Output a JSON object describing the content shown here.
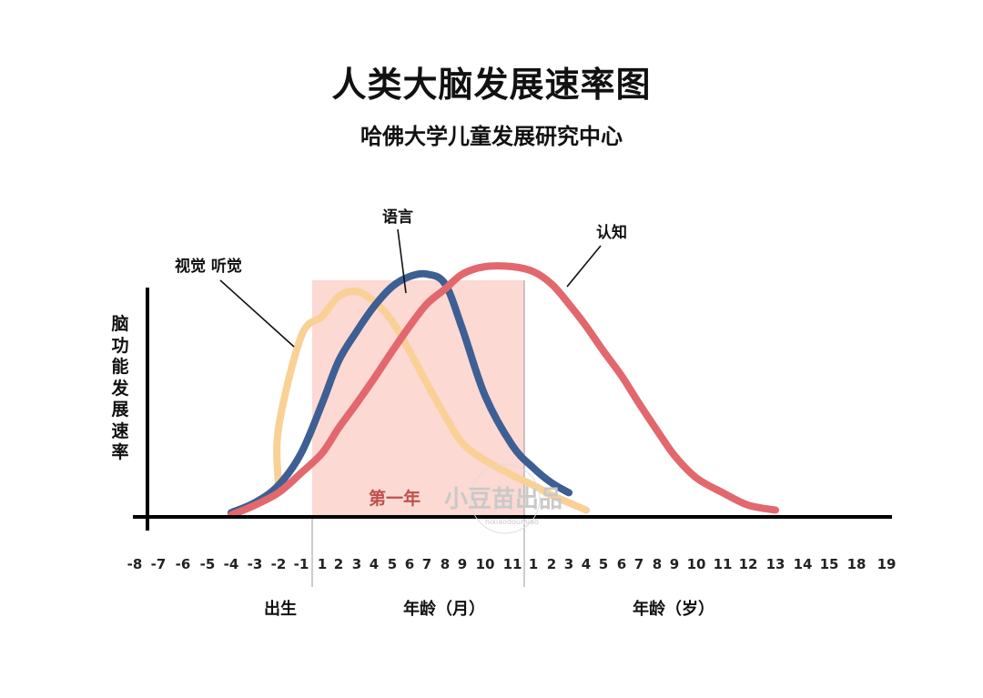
{
  "chart_data": {
    "type": "line",
    "title": "人类大脑发展速率图",
    "subtitle": "哈佛大学儿童发展研究中心",
    "ylabel": "脑功能发展速率",
    "x_ticks_prenatal": [
      "-8",
      "-7",
      "-6",
      "-5",
      "-4",
      "-3",
      "-2",
      "-1"
    ],
    "x_ticks_months": [
      "1",
      "2",
      "3",
      "4",
      "5",
      "6",
      "7",
      "8",
      "9",
      "10",
      "11"
    ],
    "x_ticks_years": [
      "1",
      "2",
      "3",
      "4",
      "5",
      "6",
      "7",
      "8",
      "9",
      "10",
      "11",
      "12",
      "13",
      "14",
      "15",
      "18",
      "19"
    ],
    "x_group_labels": {
      "birth": "出生",
      "months": "年龄（月）",
      "years": "年龄（岁）"
    },
    "highlight_label": "第一年",
    "series": [
      {
        "name": "视觉 听觉",
        "color": "#f9d196",
        "points": [
          [
            "-2",
            0.12
          ],
          [
            "-2",
            0.35
          ],
          [
            "-1",
            0.72
          ],
          [
            "1",
            0.8
          ],
          [
            "2",
            0.88
          ],
          [
            "3",
            0.9
          ],
          [
            "4",
            0.86
          ],
          [
            "5",
            0.78
          ],
          [
            "6",
            0.66
          ],
          [
            "7",
            0.53
          ],
          [
            "8",
            0.4
          ],
          [
            "9",
            0.29
          ],
          [
            "10",
            0.22
          ],
          [
            "11",
            0.16
          ],
          [
            "y1",
            0.12
          ],
          [
            "y2",
            0.08
          ],
          [
            "y3",
            0.05
          ],
          [
            "y4",
            0.02
          ]
        ]
      },
      {
        "name": "语言",
        "color": "#3d5f94",
        "points": [
          [
            "-4",
            0.01
          ],
          [
            "-3",
            0.05
          ],
          [
            "-2",
            0.12
          ],
          [
            "-1",
            0.25
          ],
          [
            "1",
            0.45
          ],
          [
            "2",
            0.62
          ],
          [
            "3",
            0.74
          ],
          [
            "4",
            0.84
          ],
          [
            "5",
            0.92
          ],
          [
            "6",
            0.96
          ],
          [
            "7",
            0.97
          ],
          [
            "8",
            0.93
          ],
          [
            "9",
            0.75
          ],
          [
            "10",
            0.48
          ],
          [
            "11",
            0.28
          ],
          [
            "y1",
            0.19
          ],
          [
            "y2",
            0.13
          ],
          [
            "y3",
            0.09
          ]
        ]
      },
      {
        "name": "认知",
        "color": "#e2686e",
        "points": [
          [
            "-4",
            0.0
          ],
          [
            "-3",
            0.04
          ],
          [
            "-2",
            0.09
          ],
          [
            "-1",
            0.17
          ],
          [
            "1",
            0.25
          ],
          [
            "2",
            0.35
          ],
          [
            "3",
            0.45
          ],
          [
            "4",
            0.55
          ],
          [
            "5",
            0.66
          ],
          [
            "6",
            0.76
          ],
          [
            "7",
            0.85
          ],
          [
            "8",
            0.91
          ],
          [
            "9",
            0.97
          ],
          [
            "10",
            1.0
          ],
          [
            "11",
            1.0
          ],
          [
            "y1",
            0.98
          ],
          [
            "y2",
            0.93
          ],
          [
            "y3",
            0.85
          ],
          [
            "y4",
            0.76
          ],
          [
            "y5",
            0.66
          ],
          [
            "y6",
            0.56
          ],
          [
            "y7",
            0.45
          ],
          [
            "y8",
            0.34
          ],
          [
            "y9",
            0.24
          ],
          [
            "y10",
            0.15
          ],
          [
            "y11",
            0.09
          ],
          [
            "y12",
            0.04
          ],
          [
            "y13",
            0.02
          ]
        ]
      }
    ],
    "colors": {
      "highlight": "#fcd9d3",
      "axis": "#000000",
      "watermark": "#c9c9c9",
      "highlight_text": "#c0504d"
    }
  },
  "watermark": {
    "text": "小豆苗出品",
    "sub": "hixiaodoumiao"
  }
}
